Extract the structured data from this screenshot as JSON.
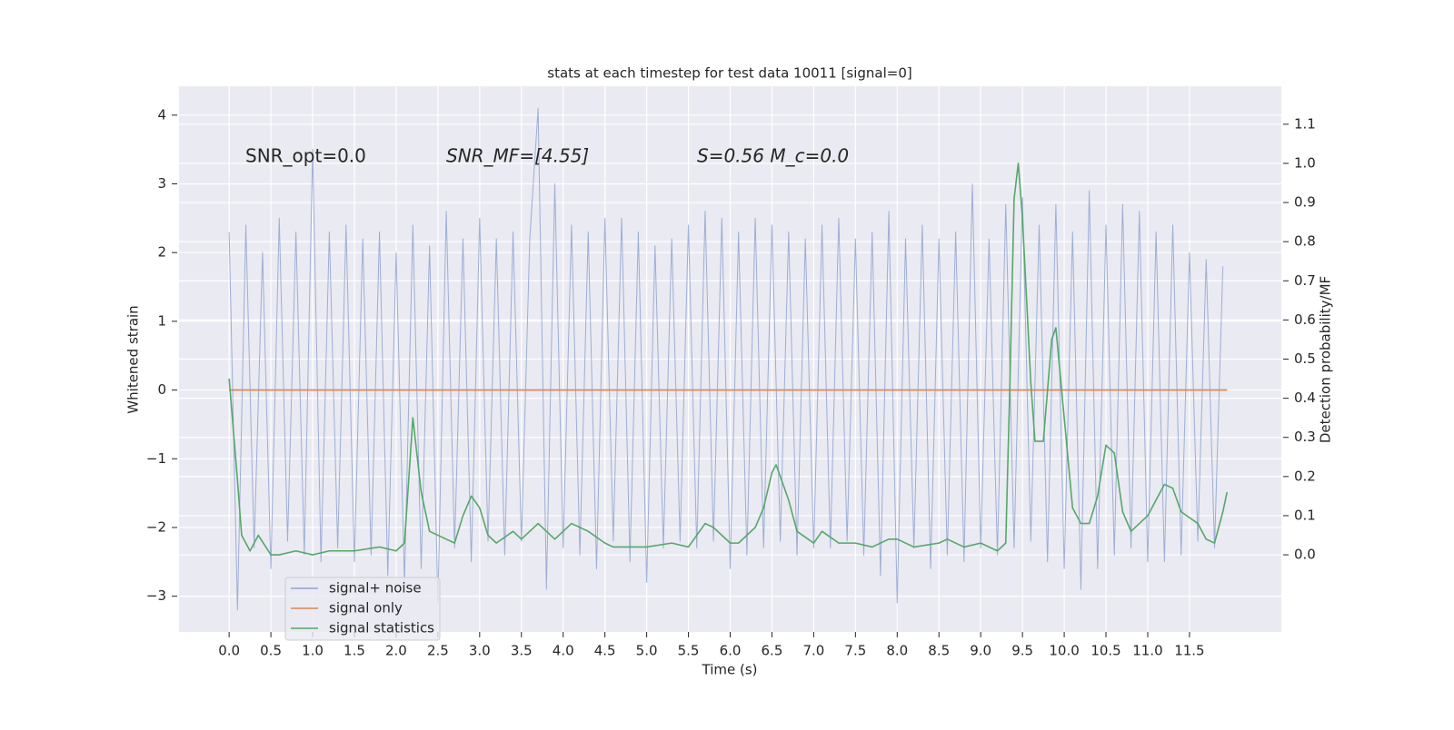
{
  "chart_data": {
    "type": "line",
    "title": "stats at each timestep for test data 10011 [signal=0]",
    "xlabel": "Time (s)",
    "ylabel": "Whitened strain",
    "y2label": "Detection probability/MF",
    "annotations": [
      "SNR_opt=0.0",
      "SNR_MF=[4.55]",
      "S=0.56   M_c=0.0"
    ],
    "xlim": [
      -0.6,
      12.6
    ],
    "ylim": [
      -3.52,
      4.42
    ],
    "y2lim": [
      -0.197,
      1.197
    ],
    "xticks": [
      {
        "value": 0,
        "label": "0.0"
      },
      {
        "value": 0.5,
        "label": "0.5"
      },
      {
        "value": 1,
        "label": "1.0"
      },
      {
        "value": 1.5,
        "label": "1.5"
      },
      {
        "value": 2,
        "label": "2.0"
      },
      {
        "value": 2.5,
        "label": "2.5"
      },
      {
        "value": 3,
        "label": "3.0"
      },
      {
        "value": 3.5,
        "label": "3.5"
      },
      {
        "value": 4,
        "label": "4.0"
      },
      {
        "value": 4.5,
        "label": "4.5"
      },
      {
        "value": 5,
        "label": "5.0"
      },
      {
        "value": 5.5,
        "label": "5.5"
      },
      {
        "value": 6,
        "label": "6.0"
      },
      {
        "value": 6.5,
        "label": "6.5"
      },
      {
        "value": 7,
        "label": "7.0"
      },
      {
        "value": 7.5,
        "label": "7.5"
      },
      {
        "value": 8,
        "label": "8.0"
      },
      {
        "value": 8.5,
        "label": "8.5"
      },
      {
        "value": 9,
        "label": "9.0"
      },
      {
        "value": 9.5,
        "label": "9.5"
      },
      {
        "value": 10,
        "label": "10.0"
      },
      {
        "value": 10.5,
        "label": "10.5"
      },
      {
        "value": 11,
        "label": "11.0"
      },
      {
        "value": 11.5,
        "label": "11.5"
      }
    ],
    "yticks": [
      {
        "value": -3,
        "label": "−3"
      },
      {
        "value": -2,
        "label": "−2"
      },
      {
        "value": -1,
        "label": "−1"
      },
      0,
      1,
      2,
      3,
      4
    ],
    "y2ticks": [
      {
        "value": 0,
        "label": "0.0"
      },
      {
        "value": 0.1,
        "label": "0.1"
      },
      {
        "value": 0.2,
        "label": "0.2"
      },
      {
        "value": 0.3,
        "label": "0.3"
      },
      {
        "value": 0.4,
        "label": "0.4"
      },
      {
        "value": 0.5,
        "label": "0.5"
      },
      {
        "value": 0.6,
        "label": "0.6"
      },
      {
        "value": 0.7,
        "label": "0.7"
      },
      {
        "value": 0.8,
        "label": "0.8"
      },
      {
        "value": 0.9,
        "label": "0.9"
      },
      {
        "value": 1,
        "label": "1.0"
      },
      {
        "value": 1.1,
        "label": "1.1"
      }
    ],
    "grid": true,
    "legend": "lower left",
    "series": [
      {
        "name": "signal+ noise",
        "color": "#8fa3cf",
        "x": [
          0,
          0.1,
          0.2,
          0.3,
          0.4,
          0.5,
          0.6,
          0.7,
          0.8,
          0.9,
          1,
          1.1,
          1.2,
          1.3,
          1.4,
          1.5,
          1.6,
          1.7,
          1.8,
          1.9,
          2,
          2.1,
          2.2,
          2.3,
          2.4,
          2.5,
          2.6,
          2.7,
          2.8,
          2.9,
          3,
          3.1,
          3.2,
          3.3,
          3.4,
          3.5,
          3.6,
          3.7,
          3.8,
          3.9,
          4,
          4.1,
          4.2,
          4.3,
          4.4,
          4.5,
          4.6,
          4.7,
          4.8,
          4.9,
          5,
          5.1,
          5.2,
          5.3,
          5.4,
          5.5,
          5.6,
          5.7,
          5.8,
          5.9,
          6,
          6.1,
          6.2,
          6.3,
          6.4,
          6.5,
          6.6,
          6.7,
          6.8,
          6.9,
          7,
          7.1,
          7.2,
          7.3,
          7.4,
          7.5,
          7.6,
          7.7,
          7.8,
          7.9,
          8,
          8.1,
          8.2,
          8.3,
          8.4,
          8.5,
          8.6,
          8.7,
          8.8,
          8.9,
          9,
          9.1,
          9.2,
          9.3,
          9.4,
          9.5,
          9.6,
          9.7,
          9.8,
          9.9,
          10,
          10.1,
          10.2,
          10.3,
          10.4,
          10.5,
          10.6,
          10.7,
          10.8,
          10.9,
          11,
          11.1,
          11.2,
          11.3,
          11.4,
          11.5,
          11.6,
          11.7,
          11.8,
          11.9
        ],
        "values": [
          2.3,
          -3.2,
          2.4,
          -2.3,
          2.0,
          -2.6,
          2.5,
          -2.2,
          2.3,
          -2.4,
          3.5,
          -2.5,
          2.3,
          -2.3,
          2.4,
          -2.5,
          2.2,
          -2.4,
          2.3,
          -2.7,
          2.0,
          -2.8,
          2.4,
          -2.6,
          2.1,
          -3.1,
          2.6,
          -2.3,
          2.2,
          -2.5,
          2.5,
          -2.2,
          2.2,
          -2.4,
          2.3,
          -2.2,
          2.2,
          4.1,
          -2.9,
          3.0,
          -2.3,
          2.4,
          -2.4,
          2.3,
          -2.6,
          2.5,
          -2.2,
          2.5,
          -2.5,
          2.3,
          -2.8,
          2.1,
          -2.3,
          2.2,
          -2.2,
          2.4,
          -2.3,
          2.6,
          -2.2,
          2.5,
          -2.6,
          2.3,
          -2.4,
          2.5,
          -2.3,
          2.4,
          -2.2,
          2.3,
          -2.4,
          2.2,
          -2.3,
          2.4,
          -2.3,
          2.5,
          -2.2,
          2.2,
          -2.4,
          2.3,
          -2.7,
          2.6,
          -3.1,
          2.2,
          -2.3,
          2.4,
          -2.6,
          2.2,
          -2.4,
          2.3,
          -2.5,
          3.0,
          -2.3,
          2.2,
          -2.4,
          2.7,
          -2.3,
          2.8,
          -2.2,
          2.4,
          -2.5,
          2.7,
          -2.6,
          2.3,
          -2.9,
          2.9,
          -2.6,
          2.4,
          -2.4,
          2.7,
          -2.3,
          2.6,
          -2.5,
          2.3,
          -2.5,
          2.4,
          -2.4,
          2.0,
          -2.2,
          1.9,
          -2.3,
          1.8
        ]
      },
      {
        "name": "signal only",
        "color": "#dd8452",
        "x": [
          0,
          11.95
        ],
        "values": [
          0,
          0
        ]
      },
      {
        "name": "signal statistics",
        "color": "#55a868",
        "axis": "y2",
        "x": [
          0,
          0.1,
          0.15,
          0.25,
          0.35,
          0.5,
          0.6,
          0.8,
          1,
          1.2,
          1.5,
          1.8,
          2,
          2.1,
          2.2,
          2.3,
          2.4,
          2.6,
          2.7,
          2.8,
          2.9,
          3,
          3.1,
          3.2,
          3.4,
          3.5,
          3.7,
          3.9,
          4.1,
          4.3,
          4.5,
          4.6,
          4.8,
          5,
          5.3,
          5.5,
          5.7,
          5.8,
          6,
          6.1,
          6.3,
          6.4,
          6.5,
          6.55,
          6.7,
          6.8,
          7,
          7.1,
          7.3,
          7.5,
          7.7,
          7.9,
          8,
          8.2,
          8.5,
          8.6,
          8.8,
          9,
          9.2,
          9.3,
          9.35,
          9.4,
          9.45,
          9.5,
          9.6,
          9.65,
          9.75,
          9.85,
          9.9,
          10,
          10.1,
          10.2,
          10.3,
          10.4,
          10.5,
          10.6,
          10.7,
          10.8,
          11,
          11.2,
          11.3,
          11.4,
          11.6,
          11.7,
          11.8,
          11.9,
          11.95
        ],
        "values": [
          0.45,
          0.19,
          0.05,
          0.01,
          0.05,
          0,
          0,
          0.01,
          0,
          0.01,
          0.01,
          0.02,
          0.01,
          0.03,
          0.35,
          0.16,
          0.06,
          0.04,
          0.03,
          0.1,
          0.15,
          0.12,
          0.05,
          0.03,
          0.06,
          0.04,
          0.08,
          0.04,
          0.08,
          0.06,
          0.03,
          0.02,
          0.02,
          0.02,
          0.03,
          0.02,
          0.08,
          0.07,
          0.03,
          0.03,
          0.07,
          0.12,
          0.21,
          0.23,
          0.14,
          0.06,
          0.03,
          0.06,
          0.03,
          0.03,
          0.02,
          0.04,
          0.04,
          0.02,
          0.03,
          0.04,
          0.02,
          0.03,
          0.01,
          0.03,
          0.44,
          0.91,
          1.0,
          0.86,
          0.44,
          0.29,
          0.29,
          0.55,
          0.58,
          0.35,
          0.12,
          0.08,
          0.08,
          0.15,
          0.28,
          0.26,
          0.11,
          0.06,
          0.1,
          0.18,
          0.17,
          0.11,
          0.08,
          0.04,
          0.03,
          0.11,
          0.16
        ]
      }
    ]
  }
}
